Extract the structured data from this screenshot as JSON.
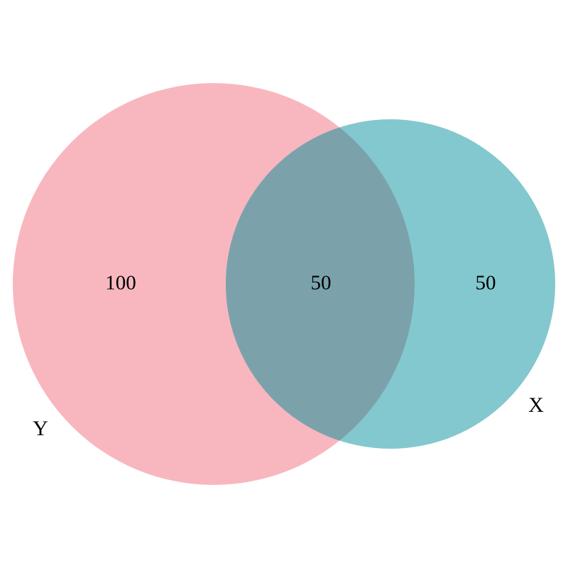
{
  "sets": [
    {
      "label": "Y",
      "color": "#F8B7BF"
    },
    {
      "label": "X",
      "color": "#83C8CE"
    }
  ],
  "overlap_color": "#7BA2AB",
  "regions": {
    "y_only": "100",
    "both": "50",
    "x_only": "50"
  }
}
